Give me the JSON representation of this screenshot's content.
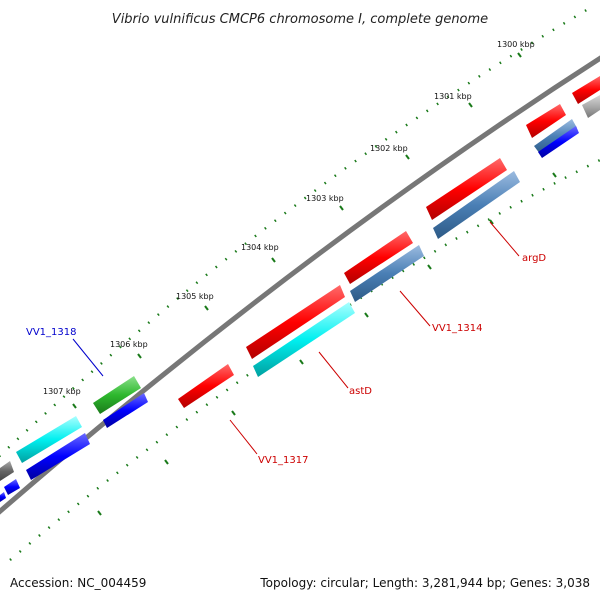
{
  "title": "Vibrio vulnificus CMCP6 chromosome I, complete genome",
  "accession": "Accession: NC_004459",
  "summary": "Topology: circular; Length: 3,281,944 bp; Genes: 3,038",
  "ticks": [
    "1300 kbp",
    "1301 kbp",
    "1302 kbp",
    "1303 kbp",
    "1304 kbp",
    "1305 kbp",
    "1306 kbp",
    "1307 kbp"
  ],
  "genes": [
    {
      "name": "argD",
      "color": "#cc0000",
      "strand": "outer"
    },
    {
      "name": "VV1_1314",
      "color": "#cc0000",
      "strand": "outer"
    },
    {
      "name": "astD",
      "color": "#cc0000",
      "strand": "outer"
    },
    {
      "name": "VV1_1317",
      "color": "#cc0000",
      "strand": "outer"
    },
    {
      "name": "VV1_1318",
      "color": "#0000cc",
      "strand": "inner"
    }
  ],
  "colors": {
    "red": "#ff0000",
    "cyan": "#00e5e5",
    "blue": "#0000ff",
    "steelblue": "#4a7fb5",
    "green": "#2eb82e",
    "gray": "#888888",
    "backbone": "#777777",
    "tick": "#1a7a1a"
  }
}
